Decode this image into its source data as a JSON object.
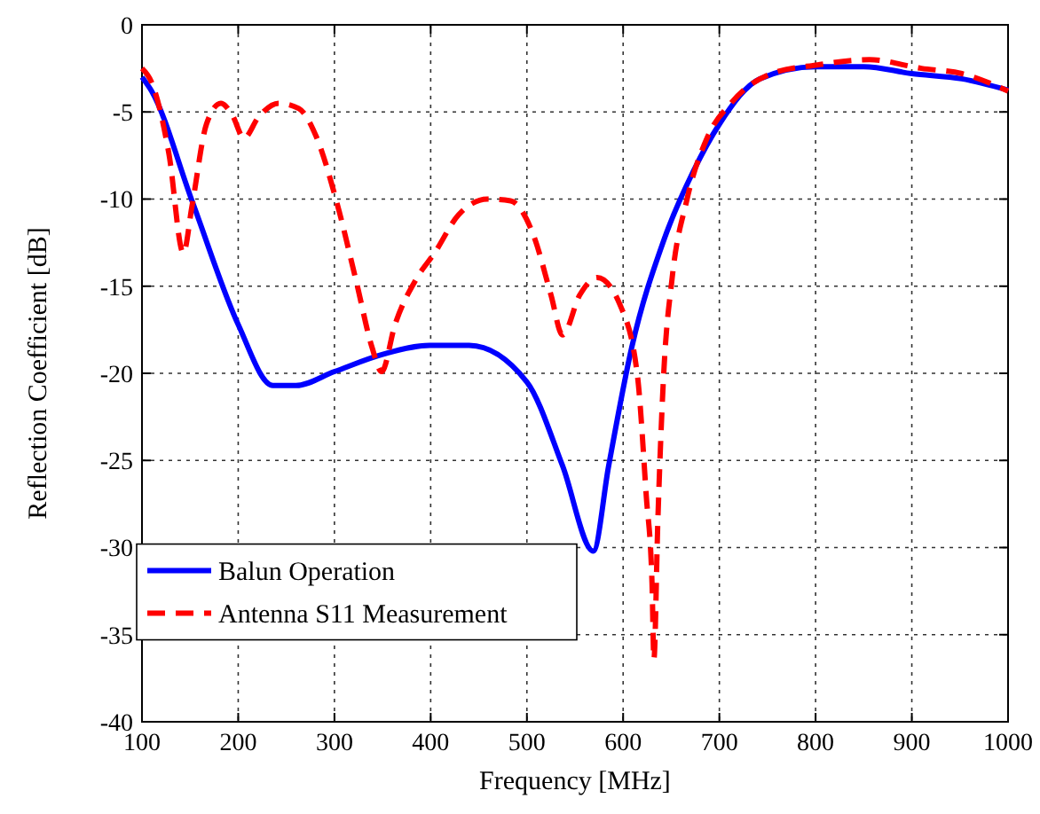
{
  "chart_data": {
    "type": "line",
    "xlabel": "Frequency [MHz]",
    "ylabel": "Reflection Coefficient [dB]",
    "xlim": [
      100,
      1000
    ],
    "ylim": [
      -40,
      0
    ],
    "xticks": [
      100,
      200,
      300,
      400,
      500,
      600,
      700,
      800,
      900,
      1000
    ],
    "yticks": [
      -40,
      -35,
      -30,
      -25,
      -20,
      -15,
      -10,
      -5,
      0
    ],
    "grid": true,
    "legend": "bottom left",
    "marker": "none",
    "series": [
      {
        "name": "Balun Operation",
        "color": "#0000ff",
        "line_style": "solid",
        "x": [
          100,
          110,
          152,
          200,
          236,
          260,
          300,
          351,
          399,
          440,
          500,
          537,
          569,
          585,
          609,
          642,
          673,
          700,
          742,
          800,
          850,
          900,
          952,
          1000
        ],
        "values": [
          -3,
          -3.8,
          -10.1,
          -17.2,
          -20.7,
          -20.7,
          -19.9,
          -18.9,
          -18.4,
          -18.4,
          -20.5,
          -25.3,
          -30.2,
          -25.3,
          -18.5,
          -12.4,
          -8.4,
          -5.7,
          -3.1,
          -2.4,
          -2.4,
          -2.8,
          -3.1,
          -3.75
        ]
      },
      {
        "name": "Antenna S11 Measurement",
        "color": "#ff0000",
        "line_style": "dashed",
        "x": [
          100,
          110,
          128,
          143,
          152,
          167,
          182,
          194,
          206,
          221,
          242,
          263,
          281,
          302,
          323,
          339,
          349,
          363,
          386,
          404,
          429,
          459,
          483,
          507,
          525,
          537,
          555,
          573,
          597,
          615,
          624,
          630,
          632,
          636,
          642,
          651,
          666,
          688,
          712,
          754,
          802,
          856,
          910,
          952,
          1000
        ],
        "values": [
          -2.5,
          -3.3,
          -7.4,
          -13.1,
          -10.4,
          -5.7,
          -4.5,
          -5.2,
          -6.5,
          -5.3,
          -4.5,
          -4.8,
          -6.4,
          -10.1,
          -14.8,
          -18.5,
          -19.9,
          -17.2,
          -14.5,
          -13.1,
          -10.9,
          -10,
          -10.1,
          -12.1,
          -15.5,
          -17.8,
          -15.5,
          -14.5,
          -16.1,
          -20.2,
          -27,
          -32,
          -36.4,
          -28.6,
          -20.2,
          -14.5,
          -10.1,
          -6.4,
          -4.5,
          -2.8,
          -2.3,
          -2,
          -2.5,
          -2.8,
          -3.8
        ]
      }
    ]
  }
}
